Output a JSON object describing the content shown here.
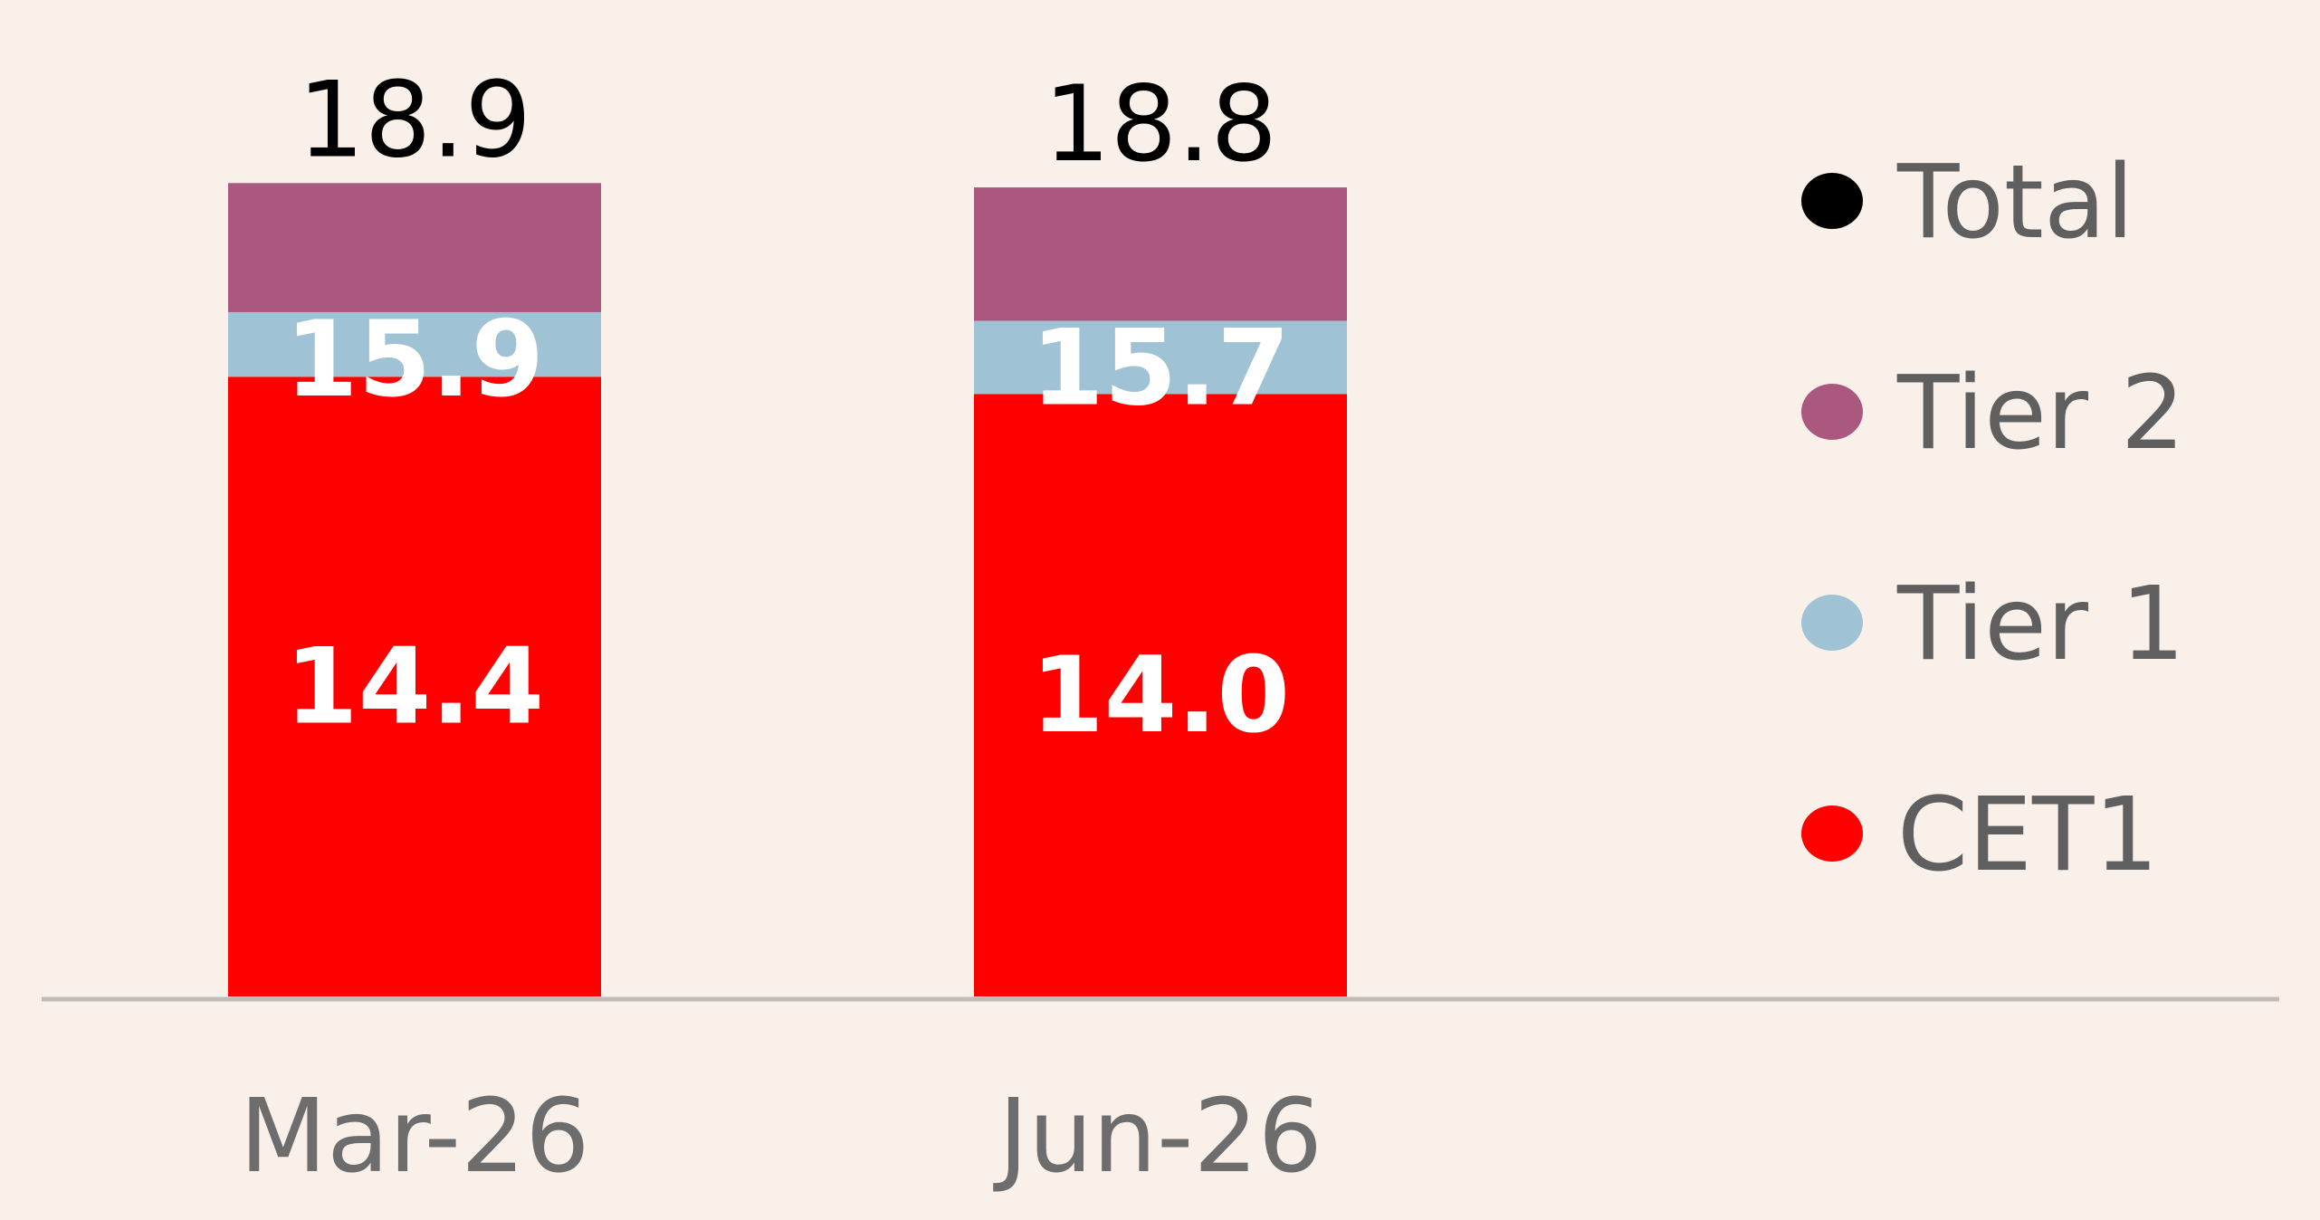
{
  "chart_data": {
    "type": "bar",
    "stacked": true,
    "categories": [
      "Mar-26",
      "Jun-26"
    ],
    "series": [
      {
        "name": "CET1",
        "color": "#ff0000",
        "values": [
          14.4,
          14.0
        ],
        "value_labels": [
          "14.4",
          "14.0"
        ]
      },
      {
        "name": "Tier 1",
        "color": "#9fc3d5",
        "values": [
          15.9,
          15.7
        ],
        "value_labels": [
          "15.9",
          "15.7"
        ]
      },
      {
        "name": "Tier 2",
        "color": "#ab587e",
        "values": [
          18.9,
          18.8
        ],
        "value_labels": [
          "",
          ""
        ]
      },
      {
        "name": "Total",
        "color": "#000000",
        "values": [
          18.9,
          18.8
        ],
        "value_labels": [
          "18.9",
          "18.8"
        ]
      }
    ],
    "legend_order": [
      "Total",
      "Tier 2",
      "Tier 1",
      "CET1"
    ],
    "legend_position": "right",
    "baseline_color": "#c0bbb8",
    "grid": false
  }
}
